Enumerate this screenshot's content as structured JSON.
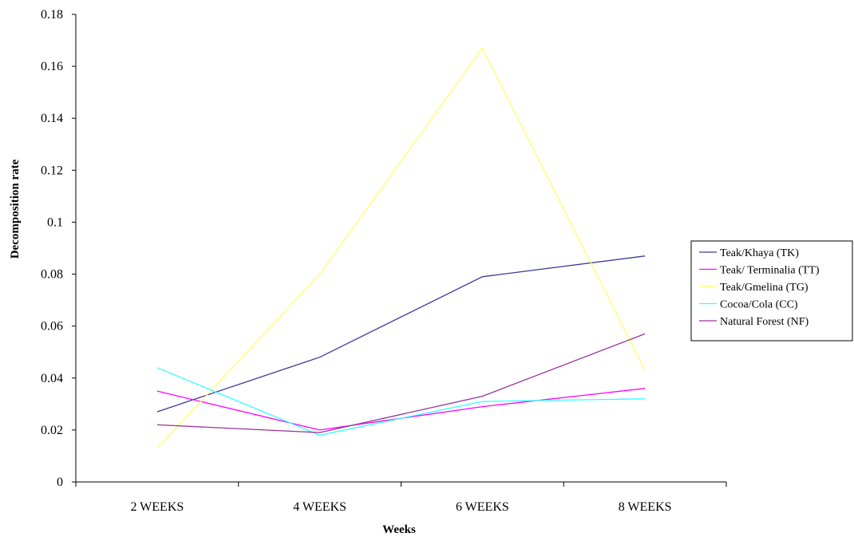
{
  "chart_data": {
    "type": "line",
    "categories": [
      "2 WEEKS",
      "4 WEEKS",
      "6 WEEKS",
      "8 WEEKS"
    ],
    "series": [
      {
        "name": "Teak/Khaya  (TK)",
        "color": "#3b3b98",
        "values": [
          0.027,
          0.048,
          0.079,
          0.087
        ]
      },
      {
        "name": "Teak/ Terminalia  (TT)",
        "color": "#ff00ff",
        "values": [
          0.035,
          0.02,
          0.029,
          0.036
        ]
      },
      {
        "name": "Teak/Gmelina  (TG)",
        "color": "#ffff66",
        "values": [
          0.013,
          0.08,
          0.167,
          0.043
        ]
      },
      {
        "name": "Cocoa/Cola  (CC)",
        "color": "#33ffff",
        "values": [
          0.044,
          0.018,
          0.031,
          0.032
        ]
      },
      {
        "name": "Natural Forest  (NF)",
        "color": "#993399",
        "values": [
          0.022,
          0.019,
          0.033,
          0.057
        ]
      }
    ],
    "xlabel": "Weeks",
    "ylabel": "Decomposition rate",
    "ylim": [
      0,
      0.18
    ],
    "yticks": [
      "0",
      "0.02",
      "0.04",
      "0.06",
      "0.08",
      "0.1",
      "0.12",
      "0.14",
      "0.16",
      "0.18"
    ],
    "grid": false,
    "legend_position": "right"
  }
}
